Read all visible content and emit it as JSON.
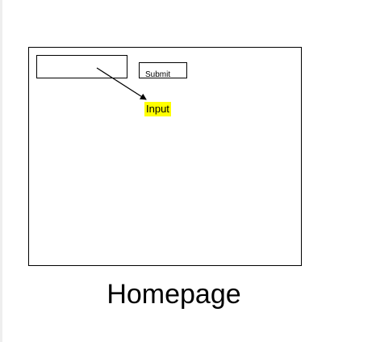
{
  "diagram": {
    "submit_label": "Submit",
    "annotation": {
      "text": "Input",
      "highlight_color": "#ffff00"
    },
    "caption": "Homepage",
    "colors": {
      "stroke": "#000000",
      "background": "#ffffff"
    }
  }
}
